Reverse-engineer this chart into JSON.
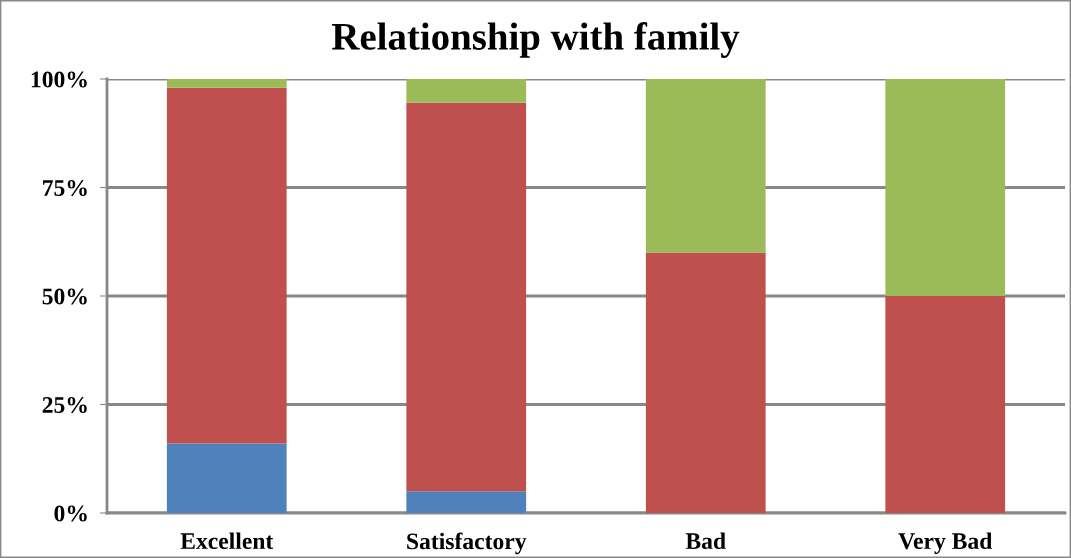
{
  "chart_data": {
    "type": "bar",
    "title": "Relationship with family",
    "stacked": true,
    "categories": [
      "Excellent",
      "Satisfactory",
      "Bad",
      "Very Bad"
    ],
    "series": [
      {
        "color": "#4f81bd",
        "values": [
          16,
          5,
          0,
          0
        ]
      },
      {
        "color": "#c0504d",
        "values": [
          82,
          89.5,
          60,
          50
        ]
      },
      {
        "color": "#9bbb59",
        "values": [
          2,
          5.5,
          40,
          50
        ]
      }
    ],
    "ylim": [
      0,
      100
    ],
    "yticks": [
      {
        "value": 0,
        "label": "0%"
      },
      {
        "value": 25,
        "label": "25%"
      },
      {
        "value": 50,
        "label": "50%"
      },
      {
        "value": 75,
        "label": "75%"
      },
      {
        "value": 100,
        "label": "100%"
      }
    ],
    "grid": "y",
    "legend": false
  }
}
